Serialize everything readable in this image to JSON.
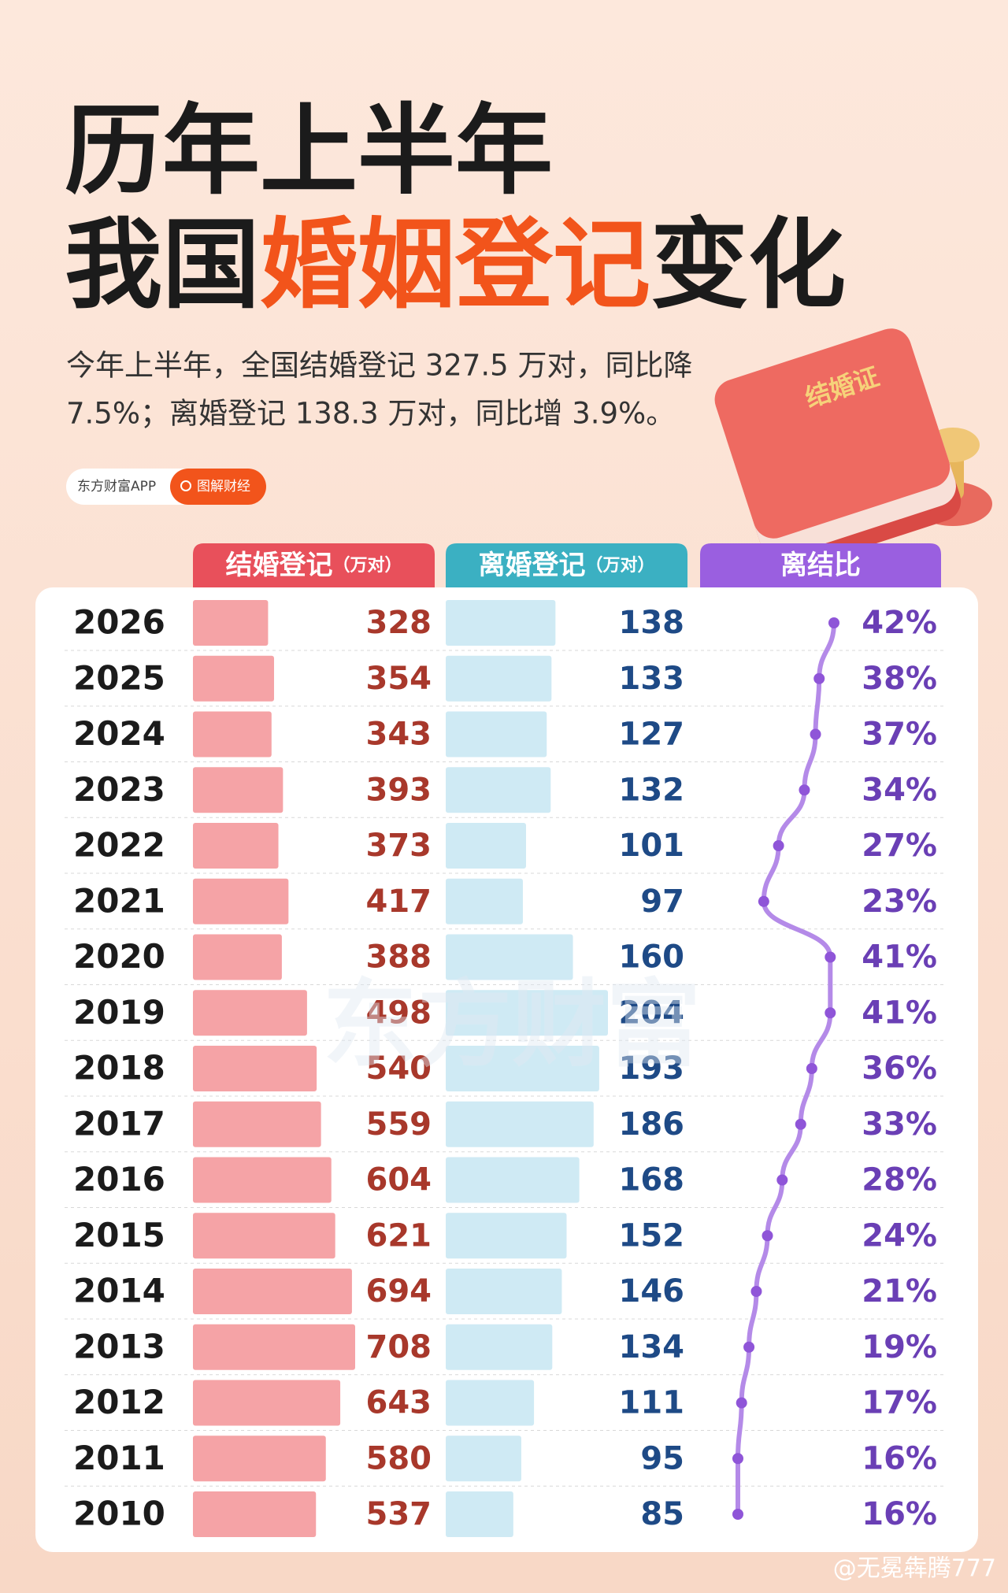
{
  "chart_data": {
    "type": "bar",
    "title": {
      "line1": "历年上半年",
      "line2": [
        "我国",
        "婚姻登记",
        "变化"
      ]
    },
    "subtitle": [
      "今年上半年，全国结婚登记 327.5 万对，同比降",
      "7.5%；离婚登记 138.3 万对，同比增 3.9%。"
    ],
    "tags": [
      "东方财富APP",
      "图解财经"
    ],
    "book_label": "结婚证",
    "watermark": "东方财富",
    "credit": "@无冕犇腾777",
    "categories": [
      "2026",
      "2025",
      "2024",
      "2023",
      "2022",
      "2021",
      "2020",
      "2019",
      "2018",
      "2017",
      "2016",
      "2015",
      "2014",
      "2013",
      "2012",
      "2011",
      "2010"
    ],
    "series": [
      {
        "name": "结婚登记",
        "unit": "（万对）",
        "color": "#f5a3a6",
        "header_color": "#e8505b",
        "text_color": "#a8382b",
        "values": [
          328,
          354,
          343,
          393,
          373,
          417,
          388,
          498,
          540,
          559,
          604,
          621,
          694,
          708,
          643,
          580,
          537
        ]
      },
      {
        "name": "离婚登记",
        "unit": "（万对）",
        "color": "#cfeaf4",
        "header_color": "#3bb0c2",
        "text_color": "#1e4a86",
        "values": [
          138,
          133,
          127,
          132,
          101,
          97,
          160,
          204,
          193,
          186,
          168,
          152,
          146,
          134,
          111,
          95,
          85
        ]
      },
      {
        "name": "离结比",
        "type": "line",
        "color": "#b48ae8",
        "header_color": "#9a5fe0",
        "text_color": "#6a3fb5",
        "values": [
          42,
          38,
          37,
          34,
          27,
          23,
          41,
          41,
          36,
          33,
          28,
          24,
          21,
          19,
          17,
          16,
          16
        ],
        "value_labels": [
          "42%",
          "38%",
          "37%",
          "34%",
          "27%",
          "23%",
          "41%",
          "41%",
          "36%",
          "33%",
          "28%",
          "24%",
          "21%",
          "19%",
          "17%",
          "16%",
          "16%"
        ]
      }
    ]
  }
}
